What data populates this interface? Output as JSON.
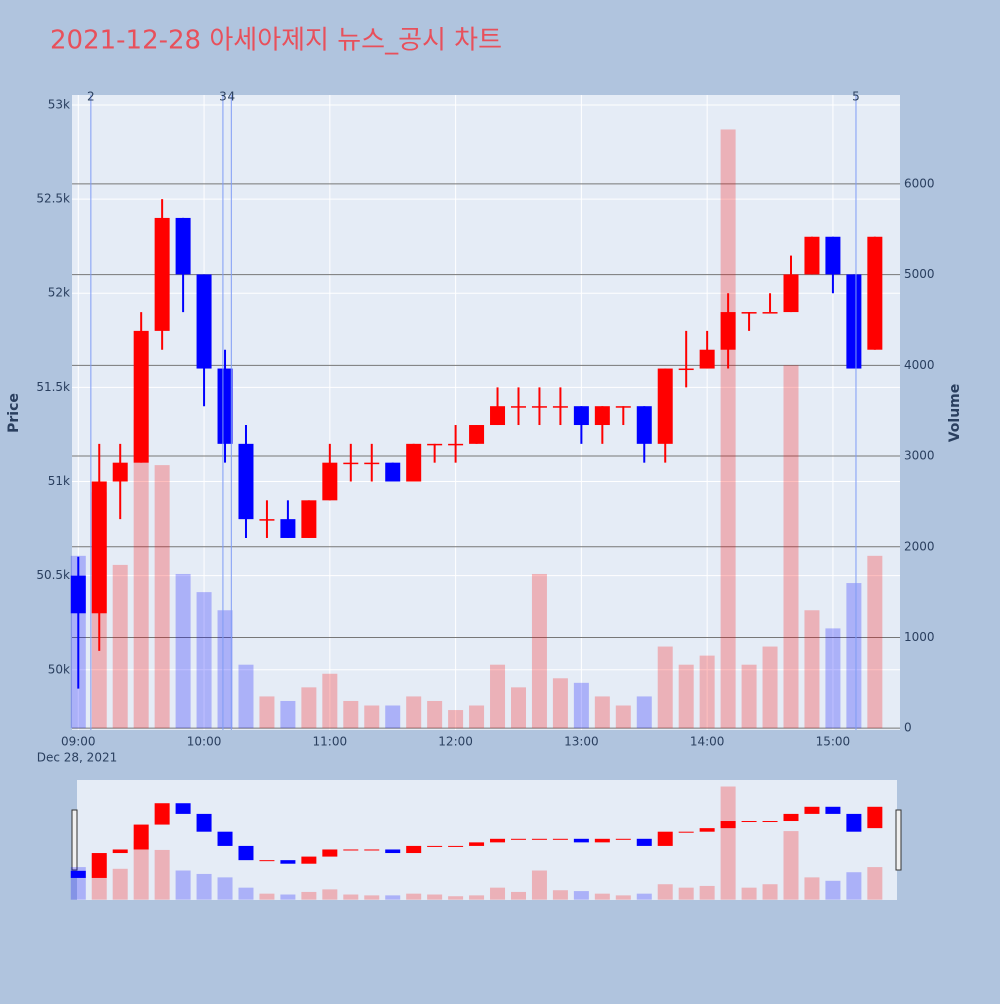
{
  "chart_data": {
    "type": "candlestick",
    "title": "2021-12-28 아세아제지 뉴스_공시 차트",
    "y_label": "Price",
    "y2_label": "Volume",
    "x_date_label": "Dec 28, 2021",
    "increasing_color": "#ff0000",
    "decreasing_color": "#0000ff",
    "x": [
      "09:00",
      "09:10",
      "09:20",
      "09:30",
      "09:40",
      "09:50",
      "10:00",
      "10:10",
      "10:20",
      "10:30",
      "10:40",
      "10:50",
      "11:00",
      "11:10",
      "11:20",
      "11:30",
      "11:40",
      "11:50",
      "12:00",
      "12:10",
      "12:20",
      "12:30",
      "12:40",
      "12:50",
      "13:00",
      "13:10",
      "13:20",
      "13:30",
      "13:40",
      "13:50",
      "14:00",
      "14:10",
      "14:20",
      "14:30",
      "14:40",
      "14:50",
      "15:00",
      "15:10",
      "15:20"
    ],
    "open": [
      50500,
      50300,
      51000,
      51100,
      51800,
      52400,
      52100,
      51600,
      51200,
      50800,
      50800,
      50700,
      50900,
      51100,
      51100,
      51100,
      51000,
      51200,
      51200,
      51200,
      51300,
      51400,
      51400,
      51400,
      51400,
      51300,
      51400,
      51400,
      51200,
      51600,
      51600,
      51700,
      51900,
      51900,
      51900,
      52100,
      52300,
      52100,
      51700
    ],
    "high": [
      50600,
      51200,
      51200,
      51900,
      52500,
      52400,
      52100,
      51700,
      51300,
      50900,
      50900,
      50900,
      51200,
      51200,
      51200,
      51100,
      51200,
      51200,
      51300,
      51300,
      51500,
      51500,
      51500,
      51500,
      51400,
      51400,
      51400,
      51400,
      51600,
      51800,
      51800,
      52000,
      51900,
      52000,
      52200,
      52300,
      52300,
      52100,
      52300
    ],
    "low": [
      49900,
      50100,
      50800,
      51100,
      51700,
      51900,
      51400,
      51100,
      50700,
      50700,
      50700,
      50700,
      50900,
      51000,
      51000,
      51000,
      51000,
      51100,
      51100,
      51200,
      51300,
      51300,
      51300,
      51300,
      51200,
      51200,
      51300,
      51100,
      51100,
      51500,
      51600,
      51600,
      51800,
      51900,
      51900,
      52100,
      52000,
      51600,
      51700
    ],
    "close": [
      50300,
      51000,
      51100,
      51800,
      52400,
      52100,
      51600,
      51200,
      50800,
      50800,
      50700,
      50900,
      51100,
      51100,
      51100,
      51000,
      51200,
      51200,
      51200,
      51300,
      51400,
      51400,
      51400,
      51400,
      51300,
      51400,
      51400,
      51200,
      51600,
      51600,
      51700,
      51900,
      51900,
      51900,
      52100,
      52300,
      52100,
      51600,
      52300
    ],
    "volume": [
      1900,
      2600,
      1800,
      3400,
      2900,
      1700,
      1500,
      1300,
      700,
      350,
      300,
      450,
      600,
      300,
      250,
      250,
      350,
      300,
      200,
      250,
      700,
      450,
      1700,
      550,
      500,
      350,
      250,
      350,
      900,
      700,
      800,
      6600,
      700,
      900,
      4000,
      1300,
      1100,
      1600,
      1900
    ],
    "events": [
      {
        "x": "09:06",
        "label": "2"
      },
      {
        "x": "10:09",
        "label": "3"
      },
      {
        "x": "10:13",
        "label": "4"
      },
      {
        "x": "15:11",
        "label": "5"
      }
    ],
    "xlim": [
      "08:57",
      "15:32"
    ],
    "xticks": [
      "09:00",
      "10:00",
      "11:00",
      "12:00",
      "13:00",
      "14:00",
      "15:00"
    ],
    "ylim": [
      49680,
      53053
    ],
    "yticks": [
      {
        "value": 50000,
        "label": "50k"
      },
      {
        "value": 50500,
        "label": "50.5k"
      },
      {
        "value": 51000,
        "label": "51k"
      },
      {
        "value": 51500,
        "label": "51.5k"
      },
      {
        "value": 52000,
        "label": "52k"
      },
      {
        "value": 52500,
        "label": "52.5k"
      },
      {
        "value": 53000,
        "label": "53k"
      }
    ],
    "y2lim": [
      -20,
      6980
    ],
    "y2ticks": [
      0,
      1000,
      2000,
      3000,
      4000,
      5000,
      6000
    ]
  }
}
